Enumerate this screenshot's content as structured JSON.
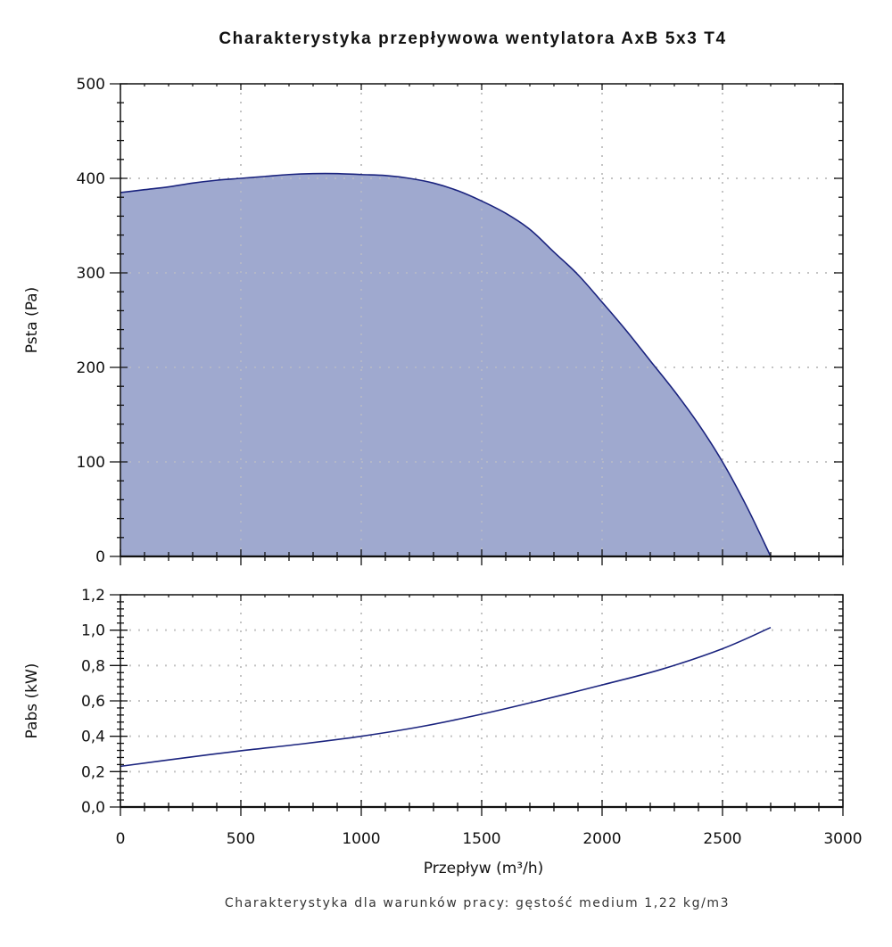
{
  "chart_data": [
    {
      "type": "area",
      "title": "Charakterystyka przepływowa wentylatora AxB 5x3 T4",
      "xlabel": "Przepływ (m³/h)",
      "ylabel": "Psta (Pa)",
      "xlim": [
        0,
        3000
      ],
      "ylim": [
        0,
        500
      ],
      "x_ticks": [
        0,
        500,
        1000,
        1500,
        2000,
        2500,
        3000
      ],
      "x_tick_labels": [
        "0",
        "500",
        "1000",
        "1500",
        "2000",
        "2500",
        "3000"
      ],
      "y_ticks": [
        0,
        100,
        200,
        300,
        400,
        500
      ],
      "y_tick_labels": [
        "0",
        "100",
        "200",
        "300",
        "400",
        "500"
      ],
      "grid": true,
      "series": [
        {
          "name": "Psta",
          "x": [
            0,
            100,
            200,
            300,
            400,
            500,
            600,
            700,
            800,
            900,
            1000,
            1100,
            1200,
            1300,
            1400,
            1500,
            1600,
            1700,
            1800,
            1900,
            2000,
            2100,
            2200,
            2300,
            2400,
            2500,
            2600,
            2700
          ],
          "y": [
            385,
            388,
            391,
            395,
            398,
            400,
            402,
            404,
            405,
            405,
            404,
            403,
            400,
            395,
            387,
            376,
            363,
            346,
            322,
            298,
            269,
            239,
            207,
            175,
            140,
            100,
            53,
            0
          ],
          "fill_color": "#9FA9CF",
          "line_color": "#1A237E"
        }
      ]
    },
    {
      "type": "line",
      "xlabel": "Przepływ (m³/h)",
      "ylabel": "Pabs (kW)",
      "xlim": [
        0,
        3000
      ],
      "ylim": [
        0,
        1.2
      ],
      "x_ticks": [
        0,
        500,
        1000,
        1500,
        2000,
        2500,
        3000
      ],
      "x_tick_labels": [
        "0",
        "500",
        "1000",
        "1500",
        "2000",
        "2500",
        "3000"
      ],
      "y_ticks": [
        0,
        0.2,
        0.4,
        0.6,
        0.8,
        1.0,
        1.2
      ],
      "y_tick_labels": [
        "0,0",
        "0,2",
        "0,4",
        "0,6",
        "0,8",
        "1,0",
        "1,2"
      ],
      "grid": true,
      "series": [
        {
          "name": "Pabs",
          "x": [
            0,
            250,
            500,
            750,
            1000,
            1250,
            1500,
            1750,
            2000,
            2250,
            2500,
            2700
          ],
          "y": [
            0.23,
            0.275,
            0.318,
            0.356,
            0.4,
            0.455,
            0.525,
            0.605,
            0.69,
            0.78,
            0.895,
            1.015
          ],
          "line_color": "#1A237E"
        }
      ]
    }
  ],
  "footer": "Charakterystyka dla warunków pracy: gęstość medium 1,22 kg/m3"
}
